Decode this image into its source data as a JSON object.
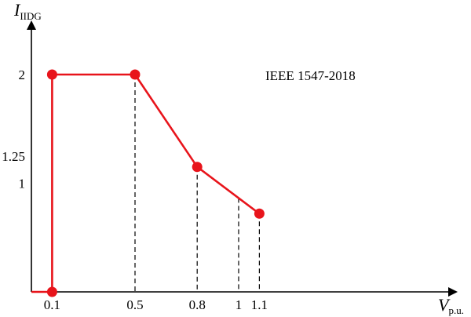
{
  "chart_data": {
    "type": "line",
    "annotation": "IEEE 1547-2018",
    "ylabel": {
      "main": "I",
      "sub": "IIDG"
    },
    "xlabel": {
      "main": "V",
      "sub": "p.u."
    },
    "x_ticks": [
      {
        "value": 0.1,
        "label": "0.1"
      },
      {
        "value": 0.5,
        "label": "0.5"
      },
      {
        "value": 0.8,
        "label": "0.8"
      },
      {
        "value": 1.0,
        "label": "1"
      },
      {
        "value": 1.1,
        "label": "1.1"
      }
    ],
    "y_ticks": [
      {
        "value": 2,
        "label": "2"
      },
      {
        "value": 1.25,
        "label": "1.25"
      },
      {
        "value": 1,
        "label": "1"
      }
    ],
    "series": [
      {
        "color": "#e8141b",
        "points": [
          {
            "x": 0.0,
            "y": 0,
            "marker": false
          },
          {
            "x": 0.1,
            "y": 0,
            "marker": true
          },
          {
            "x": 0.1,
            "y": 2,
            "marker": true
          },
          {
            "x": 0.5,
            "y": 2,
            "marker": true
          },
          {
            "x": 0.8,
            "y": 1.15,
            "marker": true
          },
          {
            "x": 1.1,
            "y": 0.72,
            "marker": true
          }
        ]
      }
    ],
    "dashed_guides_x": [
      0.5,
      0.8,
      1.0,
      1.1
    ],
    "grid": false
  }
}
